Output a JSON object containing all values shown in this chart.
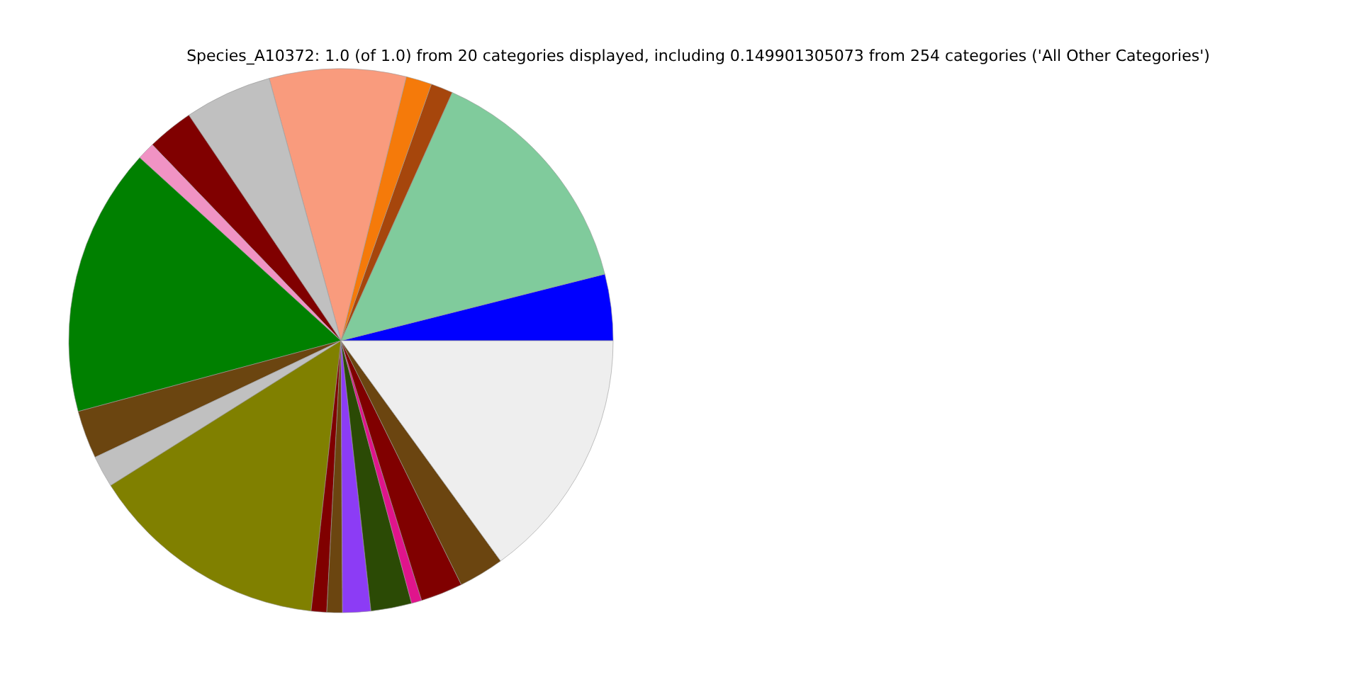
{
  "chart_data": {
    "type": "pie",
    "title": "Species_A10372: 1.0 (of 1.0) from 20 categories displayed, including 0.149901305073 from 254 categories ('All Other Categories')",
    "categories": [
      null,
      null,
      null,
      null,
      null,
      null,
      null,
      null,
      null,
      null,
      null,
      null,
      null,
      null,
      null,
      null,
      null,
      null,
      null,
      null
    ],
    "values": [
      3.94,
      14.36,
      1.31,
      1.53,
      8.11,
      5.19,
      2.75,
      1.06,
      15.94,
      2.86,
      1.89,
      14.31,
      0.92,
      0.92,
      1.67,
      2.42,
      0.61,
      2.5,
      2.69,
      15.02
    ],
    "colors": [
      "#0000ff",
      "#80cb9c",
      "#a6460c",
      "#f57a0a",
      "#f99b7d",
      "#c0c0c0",
      "#800000",
      "#f093c4",
      "#008000",
      "#6b4510",
      "#c0c0c0",
      "#808000",
      "#800000",
      "#6b4510",
      "#8c3cf5",
      "#2b4a05",
      "#e0148c",
      "#800000",
      "#6b4510",
      "#eeeeee"
    ]
  }
}
